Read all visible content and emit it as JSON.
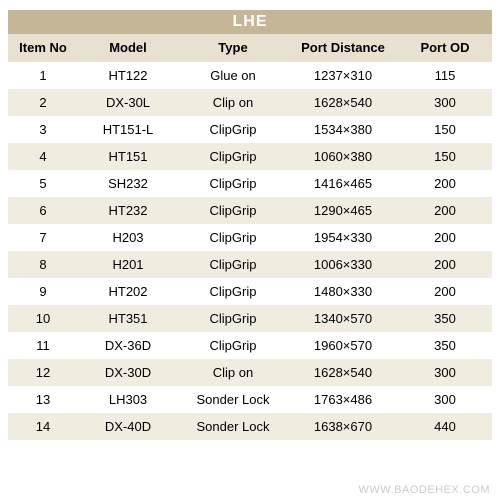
{
  "table": {
    "title": "LHE",
    "title_bg": "#c4b696",
    "title_color": "#ffffff",
    "header_bg": "#e8e1d0",
    "row_odd_bg": "#ffffff",
    "row_even_bg": "#f0ece0",
    "text_color": "#000000",
    "font_size_header": 13,
    "font_size_data": 13,
    "columns": [
      {
        "label": "Item No",
        "width": 70
      },
      {
        "label": "Model",
        "width": 100
      },
      {
        "label": "Type",
        "width": 110
      },
      {
        "label": "Port Distance",
        "width": 110
      },
      {
        "label": "Port OD",
        "width": 94
      }
    ],
    "rows": [
      {
        "itemno": "1",
        "model": "HT122",
        "type": "Glue on",
        "portdist": "1237×310",
        "portod": "115"
      },
      {
        "itemno": "2",
        "model": "DX-30L",
        "type": "Clip on",
        "portdist": "1628×540",
        "portod": "300"
      },
      {
        "itemno": "3",
        "model": "HT151-L",
        "type": "ClipGrip",
        "portdist": "1534×380",
        "portod": "150"
      },
      {
        "itemno": "4",
        "model": "HT151",
        "type": "ClipGrip",
        "portdist": "1060×380",
        "portod": "150"
      },
      {
        "itemno": "5",
        "model": "SH232",
        "type": "ClipGrip",
        "portdist": "1416×465",
        "portod": "200"
      },
      {
        "itemno": "6",
        "model": "HT232",
        "type": "ClipGrip",
        "portdist": "1290×465",
        "portod": "200"
      },
      {
        "itemno": "7",
        "model": "H203",
        "type": "ClipGrip",
        "portdist": "1954×330",
        "portod": "200"
      },
      {
        "itemno": "8",
        "model": "H201",
        "type": "ClipGrip",
        "portdist": "1006×330",
        "portod": "200"
      },
      {
        "itemno": "9",
        "model": "HT202",
        "type": "ClipGrip",
        "portdist": "1480×330",
        "portod": "200"
      },
      {
        "itemno": "10",
        "model": "HT351",
        "type": "ClipGrip",
        "portdist": "1340×570",
        "portod": "350"
      },
      {
        "itemno": "11",
        "model": "DX-36D",
        "type": "ClipGrip",
        "portdist": "1960×570",
        "portod": "350"
      },
      {
        "itemno": "12",
        "model": "DX-30D",
        "type": "Clip on",
        "portdist": "1628×540",
        "portod": "300"
      },
      {
        "itemno": "13",
        "model": "LH303",
        "type": "Sonder Lock",
        "portdist": "1763×486",
        "portod": "300"
      },
      {
        "itemno": "14",
        "model": "DX-40D",
        "type": "Sonder Lock",
        "portdist": "1638×670",
        "portod": "440"
      }
    ]
  },
  "watermark": "WWW.BAODEHEX.COM",
  "watermark_color": "#cccccc"
}
